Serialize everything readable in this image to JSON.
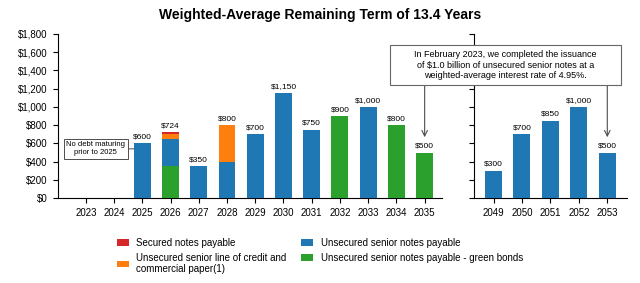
{
  "chart_data": [
    {
      "type": "bar",
      "stacked": true,
      "data_labels": true,
      "title": "Weighted-Average Remaining Term of 13.4 Years",
      "categories": [
        "2023",
        "2024",
        "2025",
        "2026",
        "2027",
        "2028",
        "2029",
        "2030",
        "2031",
        "2032",
        "2033",
        "2034",
        "2035"
      ],
      "series": [
        {
          "name": "Unsecured senior notes payable - green bonds",
          "color": "#2ca02c",
          "values": [
            null,
            null,
            0,
            350,
            0,
            0,
            0,
            0,
            0,
            900,
            0,
            800,
            500
          ]
        },
        {
          "name": "Unsecured senior notes payable",
          "values": [
            null,
            null,
            600,
            300,
            350,
            400,
            700,
            1150,
            750,
            0,
            1000,
            0,
            0
          ]
        },
        {
          "name": "Unsecured senior line of credit and\ncommercial paper(1)",
          "values": [
            null,
            null,
            0,
            50,
            0,
            400,
            0,
            0,
            0,
            0,
            0,
            0,
            0
          ]
        },
        {
          "name": "Secured notes payable",
          "values": [
            null,
            null,
            0,
            24,
            0,
            0,
            0,
            0,
            0,
            0,
            0,
            0,
            0
          ]
        }
      ],
      "value_labels": [
        null,
        null,
        "$600",
        "$724",
        "$350",
        "$800",
        "$700",
        "$1,150",
        "$750",
        "$900",
        "$1,000",
        "$800",
        "$500"
      ],
      "ylim": [
        0,
        1800
      ],
      "yticks": [
        {
          "value": 0,
          "label": "$0"
        },
        {
          "value": 200,
          "label": "$200"
        },
        {
          "value": 400,
          "label": "$400"
        },
        {
          "value": 600,
          "label": "$600"
        },
        {
          "value": 800,
          "label": "$800"
        },
        {
          "value": 1000,
          "label": "$1,000"
        },
        {
          "value": 1200,
          "label": "$1,200"
        },
        {
          "value": 1400,
          "label": "$1,400"
        },
        {
          "value": 1600,
          "label": "$1,600"
        },
        {
          "value": 1800,
          "label": "$1,800"
        }
      ],
      "annotations": [
        "No debt maturing\nprior to 2025",
        "In February 2023, we completed the issuance\nof $1.0 billion of unsecured senior notes at a\nweighted-average interest rate of 4.95%."
      ]
    },
    {
      "type": "bar",
      "stacked": true,
      "data_labels": true,
      "tick_labels": "x",
      "categories": [
        "2049",
        "2050",
        "2051",
        "2052",
        "2053"
      ],
      "series": [
        {
          "name": "Unsecured senior notes payable - green bonds",
          "color": "#2ca02c",
          "values": [
            0,
            0,
            0,
            0,
            0
          ]
        },
        {
          "name": "Unsecured senior notes payable",
          "values": [
            300,
            700,
            850,
            1000,
            500
          ]
        },
        {
          "name": "Unsecured senior line of credit and\ncommercial paper(1)",
          "values": [
            0,
            0,
            0,
            0,
            0
          ]
        },
        {
          "name": "Secured notes payable",
          "values": [
            0,
            0,
            0,
            0,
            0
          ]
        }
      ],
      "value_labels": [
        "$300",
        "$700",
        "$850",
        "$1,000",
        "$500"
      ],
      "ylim": [
        0,
        1800
      ],
      "yticks": [
        0,
        200,
        400,
        600,
        800,
        1000,
        1200,
        1400,
        1600,
        1800
      ]
    }
  ]
}
